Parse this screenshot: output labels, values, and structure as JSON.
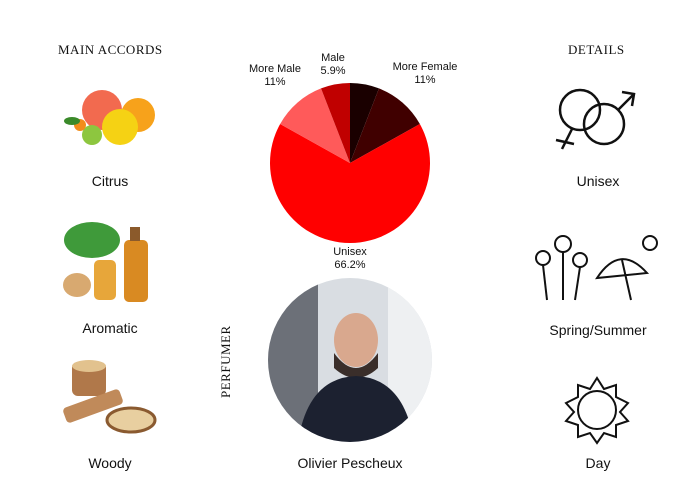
{
  "left": {
    "title": "MAIN ACCORDS",
    "items": [
      {
        "label": "Citrus",
        "icon": "citrus-fruits-icon"
      },
      {
        "label": "Aromatic",
        "icon": "herbs-oil-icon"
      },
      {
        "label": "Woody",
        "icon": "wood-logs-icon"
      }
    ]
  },
  "right": {
    "title": "DETAILS",
    "items": [
      {
        "label": "Unisex",
        "icon": "gender-symbols-icon"
      },
      {
        "label": "Spring/Summer",
        "icon": "flowers-umbrella-icon"
      },
      {
        "label": "Day",
        "icon": "sun-icon"
      }
    ]
  },
  "perfumer": {
    "heading": "PERFUMER",
    "name": "Olivier Pescheux"
  },
  "chart_data": {
    "type": "pie",
    "title": "",
    "slices": [
      {
        "label": "",
        "value": 5.9,
        "color": "#1a0000"
      },
      {
        "label": "More Female",
        "display": "11%",
        "value": 11,
        "color": "#400000"
      },
      {
        "label": "Unisex",
        "display": "66.2%",
        "value": 66.2,
        "color": "#ff0000"
      },
      {
        "label": "More Male",
        "display": "11%",
        "value": 11,
        "color": "#ff5a5a"
      },
      {
        "label": "Male",
        "display": "5.9%",
        "value": 5.9,
        "color": "#c00000"
      }
    ]
  }
}
